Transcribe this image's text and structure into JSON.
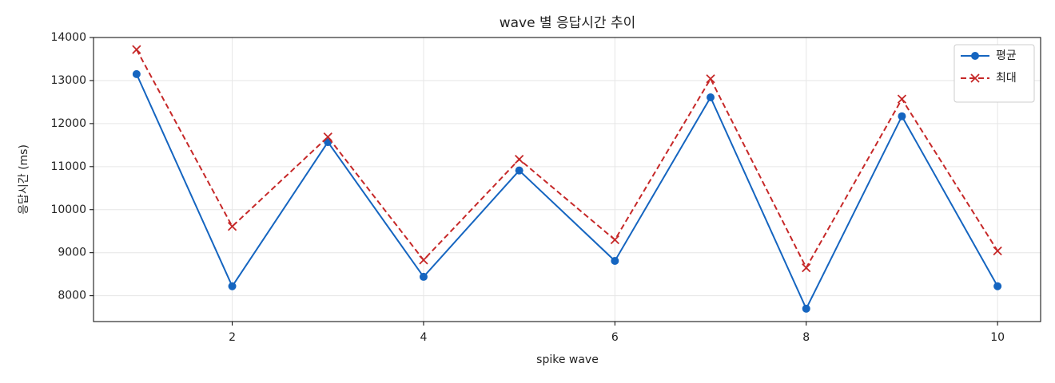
{
  "chart_data": {
    "type": "line",
    "title": "wave 별 응답시간 추이",
    "xlabel": "spike wave",
    "ylabel": "응답시간 (ms)",
    "x": [
      1,
      2,
      3,
      4,
      5,
      6,
      7,
      8,
      9,
      10
    ],
    "series": [
      {
        "name": "평균",
        "color": "#1565c0",
        "marker": "o",
        "linestyle": "solid",
        "values": [
          13150,
          8220,
          11570,
          8440,
          10910,
          8810,
          12610,
          7700,
          12170,
          8220
        ]
      },
      {
        "name": "최대",
        "color": "#c62828",
        "marker": "x",
        "linestyle": "dashed",
        "values": [
          13720,
          9610,
          11690,
          8830,
          11170,
          9300,
          13040,
          8650,
          12570,
          9040
        ]
      }
    ],
    "xlim": [
      0.55,
      10.45
    ],
    "xticks": [
      2,
      4,
      6,
      8,
      10
    ],
    "ylim": [
      7400,
      14000
    ],
    "yticks": [
      8000,
      9000,
      10000,
      11000,
      12000,
      13000,
      14000
    ],
    "grid": true,
    "legend": "upper right"
  }
}
